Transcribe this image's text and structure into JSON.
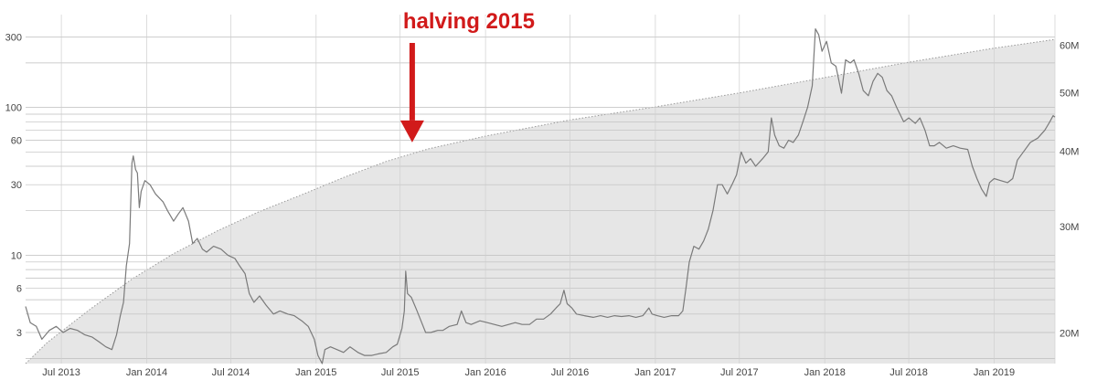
{
  "chart_data": {
    "type": "line",
    "title": "",
    "xlabel": "",
    "ylabel": "",
    "y_scale": "log",
    "y2_scale": "log",
    "grid": true,
    "ylim": [
      1.85,
      390
    ],
    "y2lim": [
      17.8,
      66
    ],
    "x_range": [
      "2013-04-15",
      "2019-05-12"
    ],
    "x_ticks": [
      {
        "date": "2013-07-01",
        "label": "Jul 2013"
      },
      {
        "date": "2014-01-01",
        "label": "Jan 2014"
      },
      {
        "date": "2014-07-01",
        "label": "Jul 2014"
      },
      {
        "date": "2015-01-01",
        "label": "Jan 2015"
      },
      {
        "date": "2015-07-01",
        "label": "Jul 2015"
      },
      {
        "date": "2016-01-01",
        "label": "Jan 2016"
      },
      {
        "date": "2016-07-01",
        "label": "Jul 2016"
      },
      {
        "date": "2017-01-01",
        "label": "Jan 2017"
      },
      {
        "date": "2017-07-01",
        "label": "Jul 2017"
      },
      {
        "date": "2018-01-01",
        "label": "Jan 2018"
      },
      {
        "date": "2018-07-01",
        "label": "Jul 2018"
      },
      {
        "date": "2019-01-01",
        "label": "Jan 2019"
      }
    ],
    "y_ticks": [
      {
        "value": 3,
        "label": "3"
      },
      {
        "value": 6,
        "label": "6"
      },
      {
        "value": 10,
        "label": "10"
      },
      {
        "value": 30,
        "label": "30"
      },
      {
        "value": 60,
        "label": "60"
      },
      {
        "value": 100,
        "label": "100"
      },
      {
        "value": 300,
        "label": "300"
      }
    ],
    "y_gridlines": [
      2,
      3,
      4,
      5,
      6,
      7,
      8,
      9,
      10,
      20,
      30,
      40,
      50,
      60,
      70,
      80,
      90,
      100,
      200,
      300
    ],
    "y2_ticks": [
      {
        "value": 20,
        "label": "20M"
      },
      {
        "value": 30,
        "label": "30M"
      },
      {
        "value": 40,
        "label": "40M"
      },
      {
        "value": 50,
        "label": "50M"
      },
      {
        "value": 60,
        "label": "60M"
      }
    ],
    "series": [
      {
        "axis": "left",
        "color": "#7a7a7a",
        "points": [
          [
            "2013-04-15",
            4.5
          ],
          [
            "2013-04-25",
            3.5
          ],
          [
            "2013-05-08",
            3.3
          ],
          [
            "2013-05-20",
            2.7
          ],
          [
            "2013-06-05",
            3.1
          ],
          [
            "2013-06-20",
            3.3
          ],
          [
            "2013-07-05",
            3.0
          ],
          [
            "2013-07-20",
            3.2
          ],
          [
            "2013-08-05",
            3.1
          ],
          [
            "2013-08-20",
            2.9
          ],
          [
            "2013-09-05",
            2.8
          ],
          [
            "2013-09-20",
            2.6
          ],
          [
            "2013-10-05",
            2.4
          ],
          [
            "2013-10-18",
            2.3
          ],
          [
            "2013-10-28",
            2.9
          ],
          [
            "2013-11-05",
            3.9
          ],
          [
            "2013-11-12",
            4.8
          ],
          [
            "2013-11-18",
            8.5
          ],
          [
            "2013-11-25",
            12.0
          ],
          [
            "2013-11-30",
            42.0
          ],
          [
            "2013-12-03",
            47.0
          ],
          [
            "2013-12-08",
            38.0
          ],
          [
            "2013-12-12",
            36.0
          ],
          [
            "2013-12-16",
            21.0
          ],
          [
            "2013-12-20",
            27.0
          ],
          [
            "2013-12-28",
            32.0
          ],
          [
            "2014-01-08",
            30.0
          ],
          [
            "2014-01-20",
            26.0
          ],
          [
            "2014-02-05",
            23.0
          ],
          [
            "2014-02-15",
            20.0
          ],
          [
            "2014-02-28",
            17.0
          ],
          [
            "2014-03-10",
            19.0
          ],
          [
            "2014-03-20",
            21.0
          ],
          [
            "2014-04-01",
            17.0
          ],
          [
            "2014-04-10",
            12.0
          ],
          [
            "2014-04-20",
            13.0
          ],
          [
            "2014-05-01",
            11.0
          ],
          [
            "2014-05-10",
            10.5
          ],
          [
            "2014-05-25",
            11.5
          ],
          [
            "2014-06-10",
            11.0
          ],
          [
            "2014-06-25",
            10.0
          ],
          [
            "2014-07-10",
            9.5
          ],
          [
            "2014-07-20",
            8.5
          ],
          [
            "2014-08-01",
            7.5
          ],
          [
            "2014-08-10",
            5.5
          ],
          [
            "2014-08-20",
            4.8
          ],
          [
            "2014-09-01",
            5.3
          ],
          [
            "2014-09-15",
            4.6
          ],
          [
            "2014-10-01",
            4.0
          ],
          [
            "2014-10-15",
            4.2
          ],
          [
            "2014-11-01",
            4.0
          ],
          [
            "2014-11-15",
            3.9
          ],
          [
            "2014-12-01",
            3.6
          ],
          [
            "2014-12-15",
            3.3
          ],
          [
            "2014-12-28",
            2.7
          ],
          [
            "2015-01-05",
            2.1
          ],
          [
            "2015-01-14",
            1.85
          ],
          [
            "2015-01-20",
            2.3
          ],
          [
            "2015-02-01",
            2.4
          ],
          [
            "2015-02-15",
            2.3
          ],
          [
            "2015-03-01",
            2.2
          ],
          [
            "2015-03-15",
            2.4
          ],
          [
            "2015-04-01",
            2.2
          ],
          [
            "2015-04-15",
            2.1
          ],
          [
            "2015-05-01",
            2.1
          ],
          [
            "2015-05-15",
            2.15
          ],
          [
            "2015-06-01",
            2.2
          ],
          [
            "2015-06-15",
            2.4
          ],
          [
            "2015-06-25",
            2.5
          ],
          [
            "2015-07-05",
            3.2
          ],
          [
            "2015-07-10",
            4.2
          ],
          [
            "2015-07-13",
            7.8
          ],
          [
            "2015-07-17",
            5.5
          ],
          [
            "2015-07-25",
            5.2
          ],
          [
            "2015-08-05",
            4.3
          ],
          [
            "2015-08-15",
            3.6
          ],
          [
            "2015-08-25",
            3.0
          ],
          [
            "2015-09-05",
            3.0
          ],
          [
            "2015-09-20",
            3.1
          ],
          [
            "2015-10-01",
            3.1
          ],
          [
            "2015-10-15",
            3.3
          ],
          [
            "2015-11-01",
            3.4
          ],
          [
            "2015-11-10",
            4.2
          ],
          [
            "2015-11-20",
            3.5
          ],
          [
            "2015-12-01",
            3.4
          ],
          [
            "2015-12-20",
            3.6
          ],
          [
            "2016-01-05",
            3.5
          ],
          [
            "2016-01-20",
            3.4
          ],
          [
            "2016-02-05",
            3.3
          ],
          [
            "2016-02-20",
            3.4
          ],
          [
            "2016-03-05",
            3.5
          ],
          [
            "2016-03-20",
            3.4
          ],
          [
            "2016-04-05",
            3.4
          ],
          [
            "2016-04-20",
            3.7
          ],
          [
            "2016-05-05",
            3.7
          ],
          [
            "2016-05-20",
            4.0
          ],
          [
            "2016-06-01",
            4.4
          ],
          [
            "2016-06-10",
            4.7
          ],
          [
            "2016-06-18",
            5.8
          ],
          [
            "2016-06-25",
            4.7
          ],
          [
            "2016-07-05",
            4.4
          ],
          [
            "2016-07-15",
            4.0
          ],
          [
            "2016-08-01",
            3.9
          ],
          [
            "2016-08-20",
            3.8
          ],
          [
            "2016-09-05",
            3.9
          ],
          [
            "2016-09-20",
            3.8
          ],
          [
            "2016-10-05",
            3.9
          ],
          [
            "2016-10-20",
            3.85
          ],
          [
            "2016-11-05",
            3.9
          ],
          [
            "2016-11-20",
            3.8
          ],
          [
            "2016-12-05",
            3.9
          ],
          [
            "2016-12-18",
            4.4
          ],
          [
            "2016-12-25",
            4.0
          ],
          [
            "2017-01-05",
            3.9
          ],
          [
            "2017-01-20",
            3.8
          ],
          [
            "2017-02-05",
            3.9
          ],
          [
            "2017-02-20",
            3.9
          ],
          [
            "2017-03-01",
            4.2
          ],
          [
            "2017-03-08",
            6.0
          ],
          [
            "2017-03-15",
            9.0
          ],
          [
            "2017-03-25",
            11.5
          ],
          [
            "2017-04-05",
            11.0
          ],
          [
            "2017-04-15",
            12.5
          ],
          [
            "2017-04-25",
            15.0
          ],
          [
            "2017-05-05",
            20.0
          ],
          [
            "2017-05-15",
            30.0
          ],
          [
            "2017-05-25",
            30.0
          ],
          [
            "2017-06-05",
            26.0
          ],
          [
            "2017-06-15",
            30.0
          ],
          [
            "2017-06-25",
            35.0
          ],
          [
            "2017-07-05",
            50.0
          ],
          [
            "2017-07-15",
            42.0
          ],
          [
            "2017-07-25",
            45.0
          ],
          [
            "2017-08-05",
            40.0
          ],
          [
            "2017-08-20",
            45.0
          ],
          [
            "2017-09-01",
            50.0
          ],
          [
            "2017-09-08",
            85.0
          ],
          [
            "2017-09-15",
            65.0
          ],
          [
            "2017-09-25",
            55.0
          ],
          [
            "2017-10-05",
            53.0
          ],
          [
            "2017-10-15",
            60.0
          ],
          [
            "2017-10-25",
            58.0
          ],
          [
            "2017-11-05",
            65.0
          ],
          [
            "2017-11-15",
            80.0
          ],
          [
            "2017-11-25",
            100.0
          ],
          [
            "2017-12-05",
            140.0
          ],
          [
            "2017-12-12",
            340.0
          ],
          [
            "2017-12-19",
            310.0
          ],
          [
            "2017-12-26",
            240.0
          ],
          [
            "2018-01-05",
            280.0
          ],
          [
            "2018-01-15",
            200.0
          ],
          [
            "2018-01-25",
            190.0
          ],
          [
            "2018-02-06",
            125.0
          ],
          [
            "2018-02-15",
            210.0
          ],
          [
            "2018-02-25",
            200.0
          ],
          [
            "2018-03-05",
            210.0
          ],
          [
            "2018-03-15",
            170.0
          ],
          [
            "2018-03-25",
            130.0
          ],
          [
            "2018-04-05",
            120.0
          ],
          [
            "2018-04-15",
            150.0
          ],
          [
            "2018-04-25",
            170.0
          ],
          [
            "2018-05-05",
            160.0
          ],
          [
            "2018-05-15",
            130.0
          ],
          [
            "2018-05-25",
            120.0
          ],
          [
            "2018-06-05",
            100.0
          ],
          [
            "2018-06-20",
            80.0
          ],
          [
            "2018-07-01",
            85.0
          ],
          [
            "2018-07-15",
            78.0
          ],
          [
            "2018-07-25",
            85.0
          ],
          [
            "2018-08-05",
            70.0
          ],
          [
            "2018-08-15",
            55.0
          ],
          [
            "2018-08-25",
            55.0
          ],
          [
            "2018-09-05",
            58.0
          ],
          [
            "2018-09-20",
            53.0
          ],
          [
            "2018-10-05",
            55.0
          ],
          [
            "2018-10-20",
            53.0
          ],
          [
            "2018-11-05",
            52.0
          ],
          [
            "2018-11-15",
            40.0
          ],
          [
            "2018-11-25",
            33.0
          ],
          [
            "2018-12-05",
            28.0
          ],
          [
            "2018-12-15",
            25.0
          ],
          [
            "2018-12-22",
            31.0
          ],
          [
            "2019-01-01",
            33.0
          ],
          [
            "2019-01-15",
            32.0
          ],
          [
            "2019-01-30",
            31.0
          ],
          [
            "2019-02-10",
            33.0
          ],
          [
            "2019-02-20",
            44.0
          ],
          [
            "2019-03-05",
            50.0
          ],
          [
            "2019-03-20",
            58.0
          ],
          [
            "2019-04-05",
            62.0
          ],
          [
            "2019-04-20",
            70.0
          ],
          [
            "2019-05-01",
            80.0
          ],
          [
            "2019-05-08",
            88.0
          ],
          [
            "2019-05-12",
            86.0
          ]
        ]
      },
      {
        "axis": "right",
        "style": "dotted-area",
        "color": "#999999",
        "fill": "#e6e6e6",
        "points": [
          [
            "2013-04-15",
            17.8
          ],
          [
            "2013-06-01",
            19.3
          ],
          [
            "2013-09-01",
            21.9
          ],
          [
            "2013-12-01",
            24.6
          ],
          [
            "2014-03-01",
            27.1
          ],
          [
            "2014-06-01",
            29.5
          ],
          [
            "2014-09-01",
            31.8
          ],
          [
            "2014-12-01",
            33.9
          ],
          [
            "2015-03-01",
            36.2
          ],
          [
            "2015-06-01",
            38.5
          ],
          [
            "2015-09-01",
            40.4
          ],
          [
            "2016-01-01",
            42.4
          ],
          [
            "2016-07-01",
            45.1
          ],
          [
            "2017-01-01",
            47.4
          ],
          [
            "2017-07-01",
            50.0
          ],
          [
            "2018-01-01",
            53.0
          ],
          [
            "2018-07-01",
            56.2
          ],
          [
            "2019-01-01",
            59.3
          ],
          [
            "2019-05-12",
            61.3
          ]
        ]
      }
    ],
    "annotations": [
      {
        "text": "halving 2015",
        "date": "2015-07-27",
        "value": 58,
        "color": "#d11a1a",
        "arrow": "down"
      }
    ]
  }
}
